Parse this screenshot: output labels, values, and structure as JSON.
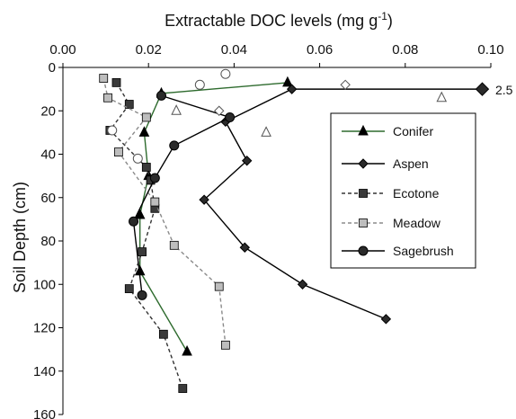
{
  "chart_data": {
    "type": "line",
    "xlabel": "Extractable DOC levels (mg g",
    "xlabel_sup": "-1",
    "xlabel_close": ")",
    "ylabel": "Soil Depth (cm)",
    "xlim": [
      0,
      0.1
    ],
    "ylim": [
      0,
      160
    ],
    "y_inverted": true,
    "x_axis_position": "top",
    "x_ticks": [
      "0.00",
      "0.02",
      "0.04",
      "0.06",
      "0.08",
      "0.10"
    ],
    "y_ticks": [
      "0",
      "20",
      "40",
      "60",
      "80",
      "100",
      "120",
      "140",
      "160"
    ],
    "legend_placement": "right",
    "annotation": "2.5",
    "series": [
      {
        "name": "Conifer",
        "marker": "triangle",
        "line": "solid",
        "color": "#2e6b2e",
        "points": [
          [
            0.0525,
            7
          ],
          [
            0.023,
            12
          ],
          [
            0.019,
            30
          ],
          [
            0.02,
            50
          ],
          [
            0.018,
            68
          ],
          [
            0.018,
            94
          ],
          [
            0.029,
            131
          ]
        ]
      },
      {
        "name": "Aspen",
        "marker": "diamond",
        "line": "solid",
        "color": "#000000",
        "points": [
          [
            0.098,
            10
          ],
          [
            0.0535,
            10
          ],
          [
            0.038,
            25
          ],
          [
            0.043,
            43
          ],
          [
            0.033,
            61
          ],
          [
            0.0425,
            83
          ],
          [
            0.056,
            100
          ],
          [
            0.0755,
            116
          ]
        ]
      },
      {
        "name": "Ecotone",
        "marker": "square",
        "line": "dashed",
        "color": "#333333",
        "points": [
          [
            0.0125,
            7
          ],
          [
            0.0155,
            17
          ],
          [
            0.011,
            29
          ],
          [
            0.0195,
            46
          ],
          [
            0.0205,
            52
          ],
          [
            0.0215,
            65
          ],
          [
            0.0185,
            85
          ],
          [
            0.0155,
            102
          ],
          [
            0.0235,
            123
          ],
          [
            0.028,
            148
          ]
        ]
      },
      {
        "name": "Meadow",
        "marker": "square",
        "line": "dashed",
        "color": "#8a8a8a",
        "points": [
          [
            0.0095,
            5
          ],
          [
            0.0105,
            14
          ],
          [
            0.0195,
            23
          ],
          [
            0.013,
            39
          ],
          [
            0.0215,
            62
          ],
          [
            0.026,
            82
          ],
          [
            0.0365,
            101
          ],
          [
            0.038,
            128
          ]
        ]
      },
      {
        "name": "Sagebrush",
        "marker": "circle",
        "line": "solid",
        "color": "#000000",
        "points": [
          [
            0.023,
            13
          ],
          [
            0.039,
            23
          ],
          [
            0.026,
            36
          ],
          [
            0.0215,
            51
          ],
          [
            0.0165,
            71
          ],
          [
            0.0185,
            105
          ]
        ]
      }
    ],
    "unconnected_points": [
      {
        "marker": "open-circle",
        "points": [
          [
            0.038,
            3
          ],
          [
            0.032,
            8
          ],
          [
            0.0115,
            29
          ],
          [
            0.0175,
            42
          ]
        ]
      },
      {
        "marker": "open-triangle",
        "points": [
          [
            0.0265,
            20
          ],
          [
            0.0475,
            30
          ],
          [
            0.0885,
            14
          ]
        ]
      },
      {
        "marker": "open-diamond",
        "points": [
          [
            0.0365,
            20
          ],
          [
            0.066,
            8
          ]
        ]
      }
    ]
  }
}
